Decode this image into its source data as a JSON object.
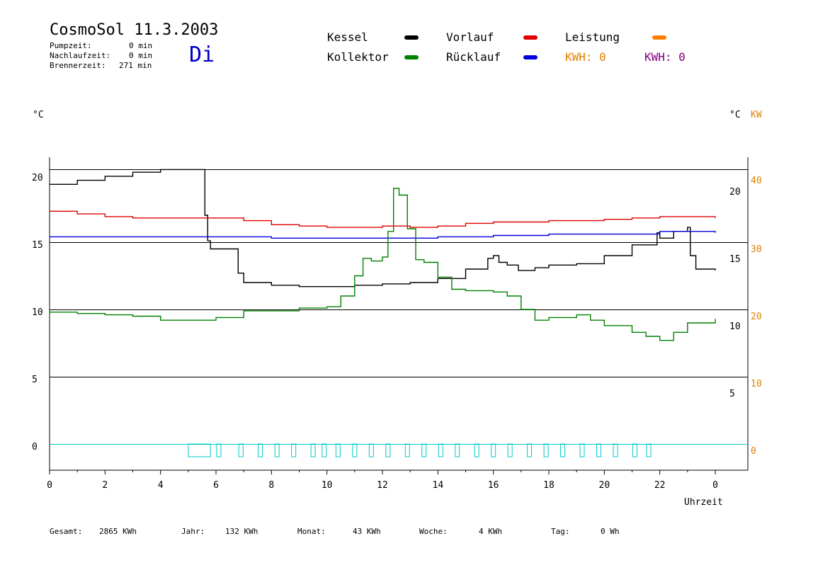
{
  "header": {
    "title": "CosmoSol 11.3.2003",
    "day": "Di",
    "stats": [
      {
        "label": "Pumpzeit:",
        "value": "0 min"
      },
      {
        "label": "Nachlaufzeit:",
        "value": "0 min"
      },
      {
        "label": "Brennerzeit:",
        "value": "271 min"
      }
    ]
  },
  "legend": {
    "kessel": {
      "label": "Kessel",
      "color": "#000000"
    },
    "kollektor": {
      "label": "Kollektor",
      "color": "#008000"
    },
    "vorlauf": {
      "label": "Vorlauf",
      "color": "#e00000"
    },
    "ruecklauf": {
      "label": "Rücklauf",
      "color": "#0000e0"
    },
    "leistung": {
      "label": "Leistung",
      "color": "#ff8000"
    },
    "kwh_orange": "KWH: 0",
    "kwh_purple": "KWH: 0"
  },
  "footer": [
    {
      "label": "Gesamt:",
      "value": "2865 KWh"
    },
    {
      "label": "Jahr:",
      "value": "132 KWh"
    },
    {
      "label": "Monat:",
      "value": "43 KWh"
    },
    {
      "label": "Woche:",
      "value": "4 KWh"
    },
    {
      "label": "Tag:",
      "value": "0 Wh"
    }
  ],
  "chart_data": {
    "type": "line",
    "xlabel": "Uhrzeit",
    "ylabel_left": "°C",
    "ylabel_right": "°C",
    "ylabel_right2": "KW",
    "x_ticks": [
      "0",
      "2",
      "4",
      "6",
      "8",
      "10",
      "12",
      "14",
      "16",
      "18",
      "20",
      "22",
      "0"
    ],
    "xlim": [
      0,
      24
    ],
    "ylim": [
      -1.8,
      22
    ],
    "y_left_ticks": [
      0,
      5,
      10,
      15,
      20
    ],
    "y_right_ticks": [
      5,
      10,
      15,
      20
    ],
    "y_right_kw_ticks": [
      0,
      10,
      20,
      30,
      40
    ],
    "gridlines": [
      0,
      5,
      10,
      15,
      20.4
    ],
    "series": [
      {
        "name": "Kessel",
        "color": "#000000",
        "points": [
          [
            0,
            19.3
          ],
          [
            1,
            19.6
          ],
          [
            2,
            19.9
          ],
          [
            3,
            20.2
          ],
          [
            4,
            20.4
          ],
          [
            5.5,
            20.4
          ],
          [
            5.6,
            17
          ],
          [
            5.7,
            15.1
          ],
          [
            5.8,
            14.5
          ],
          [
            6.6,
            14.5
          ],
          [
            6.8,
            12.7
          ],
          [
            7,
            12
          ],
          [
            8,
            11.8
          ],
          [
            9,
            11.7
          ],
          [
            10,
            11.7
          ],
          [
            11,
            11.8
          ],
          [
            12,
            11.9
          ],
          [
            13,
            12
          ],
          [
            14,
            12.3
          ],
          [
            15,
            13
          ],
          [
            15.8,
            13.8
          ],
          [
            16,
            14
          ],
          [
            16.2,
            13.5
          ],
          [
            16.5,
            13.3
          ],
          [
            16.9,
            12.9
          ],
          [
            17.5,
            13.1
          ],
          [
            18,
            13.3
          ],
          [
            19,
            13.4
          ],
          [
            20,
            14
          ],
          [
            21,
            14.8
          ],
          [
            21.9,
            15.7
          ],
          [
            22,
            15.3
          ],
          [
            22.5,
            15.8
          ],
          [
            23,
            16.1
          ],
          [
            23.1,
            14
          ],
          [
            23.3,
            13
          ],
          [
            24,
            12.9
          ]
        ]
      },
      {
        "name": "Vorlauf",
        "color": "#e00000",
        "points": [
          [
            0,
            17.3
          ],
          [
            1,
            17.1
          ],
          [
            2,
            16.9
          ],
          [
            3,
            16.8
          ],
          [
            4,
            16.8
          ],
          [
            5,
            16.8
          ],
          [
            6,
            16.8
          ],
          [
            7,
            16.6
          ],
          [
            8,
            16.3
          ],
          [
            9,
            16.2
          ],
          [
            10,
            16.1
          ],
          [
            11,
            16.1
          ],
          [
            12,
            16.2
          ],
          [
            13,
            16.1
          ],
          [
            14,
            16.2
          ],
          [
            15,
            16.4
          ],
          [
            16,
            16.5
          ],
          [
            17,
            16.5
          ],
          [
            18,
            16.6
          ],
          [
            19,
            16.6
          ],
          [
            20,
            16.7
          ],
          [
            21,
            16.8
          ],
          [
            22,
            16.9
          ],
          [
            23,
            16.9
          ],
          [
            24,
            16.8
          ]
        ]
      },
      {
        "name": "Rücklauf",
        "color": "#0000e0",
        "points": [
          [
            0,
            15.4
          ],
          [
            2,
            15.4
          ],
          [
            4,
            15.4
          ],
          [
            6,
            15.4
          ],
          [
            8,
            15.3
          ],
          [
            10,
            15.3
          ],
          [
            12,
            15.3
          ],
          [
            14,
            15.4
          ],
          [
            16,
            15.5
          ],
          [
            18,
            15.6
          ],
          [
            20,
            15.6
          ],
          [
            22,
            15.8
          ],
          [
            23,
            15.8
          ],
          [
            24,
            15.7
          ]
        ]
      },
      {
        "name": "Kollektor",
        "color": "#008000",
        "points": [
          [
            0,
            9.8
          ],
          [
            1,
            9.7
          ],
          [
            2,
            9.6
          ],
          [
            3,
            9.5
          ],
          [
            4,
            9.2
          ],
          [
            5,
            9.2
          ],
          [
            6,
            9.4
          ],
          [
            7,
            9.9
          ],
          [
            8,
            9.9
          ],
          [
            9,
            10.1
          ],
          [
            10,
            10.2
          ],
          [
            10.5,
            11
          ],
          [
            11,
            12.5
          ],
          [
            11.3,
            13.8
          ],
          [
            11.6,
            13.6
          ],
          [
            12,
            13.9
          ],
          [
            12.2,
            15.8
          ],
          [
            12.4,
            19
          ],
          [
            12.6,
            18.5
          ],
          [
            12.9,
            16
          ],
          [
            13.2,
            13.7
          ],
          [
            13.5,
            13.5
          ],
          [
            14,
            12.4
          ],
          [
            14.5,
            11.5
          ],
          [
            15,
            11.4
          ],
          [
            16,
            11.3
          ],
          [
            16.5,
            11
          ],
          [
            17,
            10
          ],
          [
            17.5,
            9.2
          ],
          [
            18,
            9.4
          ],
          [
            19,
            9.6
          ],
          [
            19.5,
            9.2
          ],
          [
            20,
            8.8
          ],
          [
            21,
            8.3
          ],
          [
            21.5,
            8
          ],
          [
            22,
            7.7
          ],
          [
            22.5,
            8.3
          ],
          [
            23,
            9
          ],
          [
            24,
            9.3
          ]
        ]
      }
    ],
    "pump_marks": [
      6.1,
      6.9,
      7.6,
      8.2,
      8.8,
      9.5,
      9.9,
      10.4,
      11,
      11.6,
      12.2,
      12.9,
      13.5,
      14.1,
      14.7,
      15.4,
      16,
      16.6,
      17.3,
      17.9,
      18.5,
      19.2,
      19.8,
      20.4,
      21.1,
      21.6
    ]
  }
}
